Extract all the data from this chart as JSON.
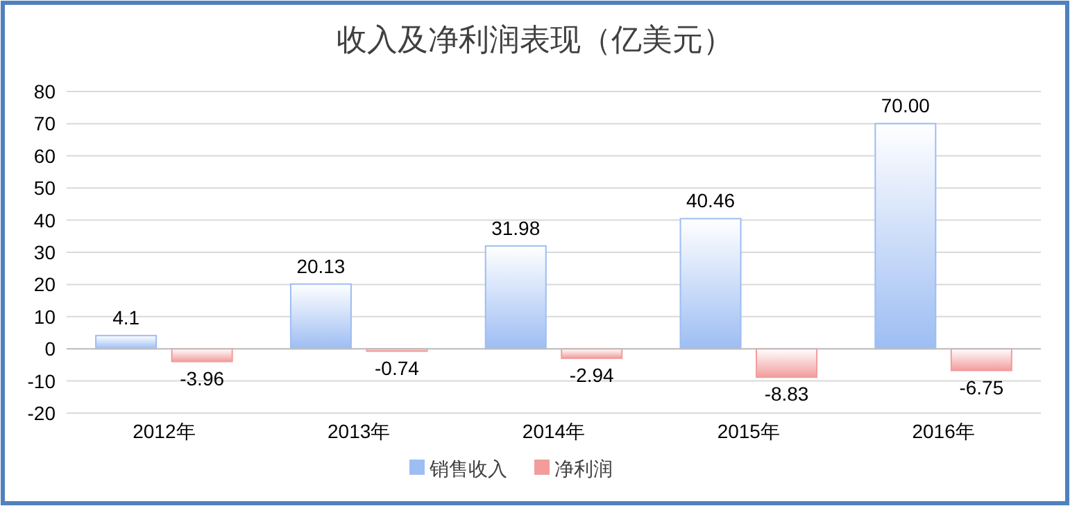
{
  "chart_data": {
    "type": "bar",
    "title": "收入及净利润表现（亿美元）",
    "categories": [
      "2012年",
      "2013年",
      "2014年",
      "2015年",
      "2016年"
    ],
    "series": [
      {
        "name": "销售收入",
        "color": "#9dbdf3",
        "values": [
          4.1,
          20.13,
          31.98,
          40.46,
          70.0
        ],
        "value_labels": [
          "4.1",
          "20.13",
          "31.98",
          "40.46",
          "70.00"
        ]
      },
      {
        "name": "净利润",
        "color": "#f29c9c",
        "values": [
          -3.96,
          -0.74,
          -2.94,
          -8.83,
          -6.75
        ],
        "value_labels": [
          "-3.96",
          "-0.74",
          "-2.94",
          "-8.83",
          "-6.75"
        ]
      }
    ],
    "ylim": [
      -20,
      80
    ],
    "yticks": [
      -20,
      -10,
      0,
      10,
      20,
      30,
      40,
      50,
      60,
      70,
      80
    ],
    "grid": "y",
    "legend": "bottom"
  }
}
